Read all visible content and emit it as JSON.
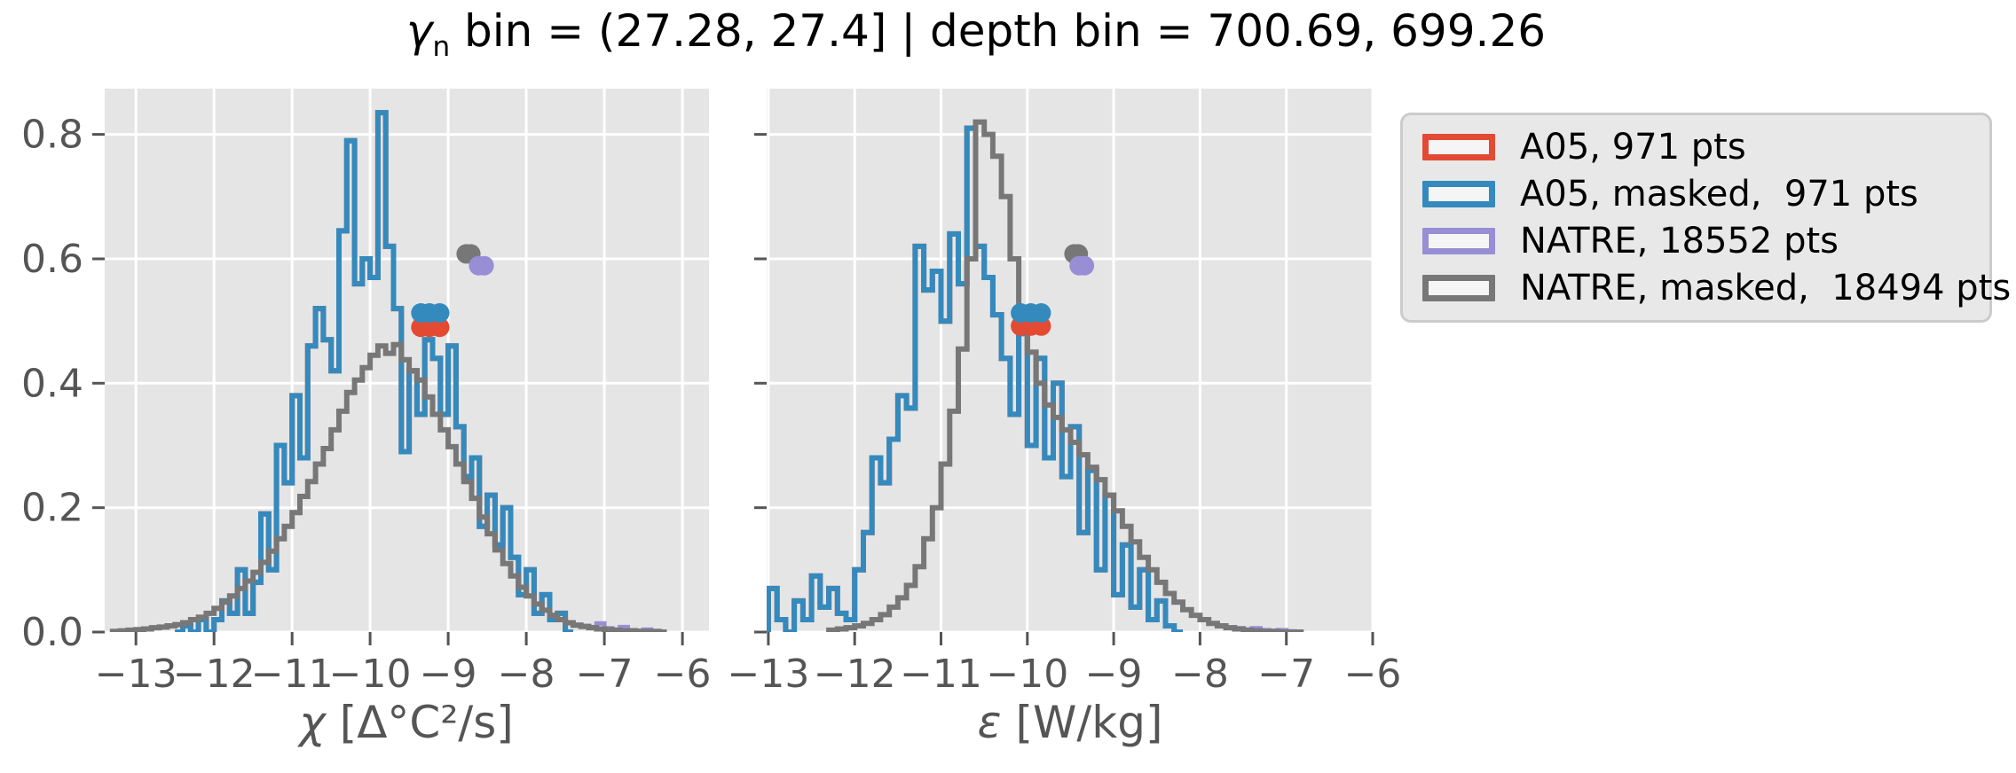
{
  "title": {
    "symbol": "γ",
    "sub": "n",
    "rest": " bin = (27.28, 27.4] | depth bin = 700.69, 699.26"
  },
  "colors": {
    "red": "#E24A33",
    "blue": "#348ABD",
    "purple": "#988ED5",
    "gray": "#777777",
    "plot_bg": "#E5E5E5",
    "grid": "#FFFFFF",
    "tick_text": "#555555",
    "title_text": "#000000",
    "legend_bg": "#E8E8E8",
    "legend_border": "#CBCBCB",
    "swatch_fill": "#F5F5F5"
  },
  "legend": {
    "items": [
      {
        "label": "A05, 971 pts",
        "color": "#E24A33"
      },
      {
        "label": "A05, masked,  971 pts",
        "color": "#348ABD"
      },
      {
        "label": "NATRE, 18552 pts",
        "color": "#988ED5"
      },
      {
        "label": "NATRE, masked,  18494 pts",
        "color": "#777777"
      }
    ]
  },
  "chart_data": [
    {
      "id": "chi",
      "type": "step-histogram",
      "xlabel_symbol": "χ",
      "xlabel_units": " [Δ°C²/s]",
      "xlim": [
        -13.4,
        -5.66
      ],
      "ylim": [
        0,
        0.8736
      ],
      "x_ticks": [
        -13,
        -12,
        -11,
        -10,
        -9,
        -8,
        -7,
        -6
      ],
      "y_ticks": [
        0.0,
        0.2,
        0.4,
        0.6,
        0.8
      ],
      "y_tick_labels_visible": true,
      "grid": true,
      "series": [
        {
          "name": "A05",
          "color": "#E24A33",
          "line_width": 6,
          "bin_start": -12.5,
          "bin_width": 0.1,
          "values": [
            0,
            0.01,
            0,
            0.02,
            0,
            0.02,
            0.05,
            0.03,
            0.1,
            0.03,
            0.08,
            0.19,
            0.1,
            0.3,
            0.24,
            0.38,
            0.28,
            0.46,
            0.52,
            0.47,
            0.42,
            0.645,
            0.79,
            0.56,
            0.6,
            0.57,
            0.835,
            0.62,
            0.52,
            0.29,
            0.42,
            0.35,
            0.47,
            0.44,
            0.35,
            0.46,
            0.33,
            0.25,
            0.28,
            0.17,
            0.22,
            0.14,
            0.2,
            0.12,
            0.06,
            0.1,
            0.03,
            0.06,
            0.02,
            0.03,
            0
          ]
        },
        {
          "name": "A05, masked",
          "color": "#348ABD",
          "line_width": 6,
          "bin_start": -12.5,
          "bin_width": 0.1,
          "values": [
            0,
            0.01,
            0,
            0.02,
            0,
            0.02,
            0.05,
            0.03,
            0.1,
            0.03,
            0.08,
            0.19,
            0.1,
            0.3,
            0.24,
            0.38,
            0.28,
            0.46,
            0.52,
            0.47,
            0.42,
            0.645,
            0.79,
            0.56,
            0.6,
            0.57,
            0.835,
            0.62,
            0.52,
            0.29,
            0.42,
            0.35,
            0.47,
            0.44,
            0.35,
            0.46,
            0.33,
            0.25,
            0.28,
            0.17,
            0.22,
            0.14,
            0.2,
            0.12,
            0.06,
            0.1,
            0.03,
            0.06,
            0.02,
            0.03,
            0
          ]
        },
        {
          "name": "NATRE",
          "color": "#988ED5",
          "line_width": 5,
          "bin_start": -13.3,
          "bin_width": 0.1,
          "values": [
            0.001,
            0.002,
            0.003,
            0.004,
            0.005,
            0.007,
            0.008,
            0.01,
            0.012,
            0.015,
            0.02,
            0.024,
            0.03,
            0.038,
            0.048,
            0.058,
            0.07,
            0.082,
            0.096,
            0.112,
            0.13,
            0.15,
            0.17,
            0.192,
            0.218,
            0.242,
            0.27,
            0.295,
            0.325,
            0.355,
            0.385,
            0.405,
            0.425,
            0.445,
            0.46,
            0.448,
            0.462,
            0.438,
            0.42,
            0.405,
            0.378,
            0.35,
            0.325,
            0.298,
            0.27,
            0.242,
            0.215,
            0.185,
            0.158,
            0.132,
            0.11,
            0.09,
            0.072,
            0.058,
            0.045,
            0.035,
            0.027,
            0.02,
            0.015,
            0.012,
            0.01,
            0.008,
            0.014,
            0.006,
            0.004,
            0.008,
            0.003,
            0.002,
            0.004,
            0.001,
            0
          ]
        },
        {
          "name": "NATRE, masked",
          "color": "#777777",
          "line_width": 6,
          "bin_start": -13.3,
          "bin_width": 0.1,
          "values": [
            0.001,
            0.002,
            0.003,
            0.004,
            0.005,
            0.007,
            0.008,
            0.01,
            0.012,
            0.015,
            0.02,
            0.024,
            0.03,
            0.038,
            0.048,
            0.058,
            0.07,
            0.082,
            0.096,
            0.112,
            0.13,
            0.15,
            0.17,
            0.192,
            0.218,
            0.242,
            0.27,
            0.295,
            0.325,
            0.355,
            0.385,
            0.405,
            0.425,
            0.445,
            0.46,
            0.448,
            0.462,
            0.438,
            0.42,
            0.405,
            0.378,
            0.35,
            0.325,
            0.298,
            0.27,
            0.242,
            0.215,
            0.185,
            0.158,
            0.132,
            0.11,
            0.09,
            0.072,
            0.058,
            0.045,
            0.035,
            0.027,
            0.02,
            0.015,
            0.011,
            0.009,
            0.007,
            0.005,
            0.004,
            0.003,
            0.002,
            0.002,
            0.001,
            0.001,
            0.001,
            0
          ]
        }
      ],
      "markers": [
        {
          "name": "A05 mean",
          "color": "#E24A33",
          "radius": 11,
          "points": [
            [
              -9.35,
              0.49
            ],
            [
              -9.24,
              0.49
            ],
            [
              -9.11,
              0.49
            ]
          ]
        },
        {
          "name": "A05 masked mean",
          "color": "#348ABD",
          "radius": 11,
          "points": [
            [
              -9.35,
              0.513
            ],
            [
              -9.24,
              0.513
            ],
            [
              -9.11,
              0.513
            ]
          ]
        },
        {
          "name": "NATRE masked mean",
          "color": "#777777",
          "radius": 11,
          "points": [
            [
              -8.77,
              0.608
            ],
            [
              -8.71,
              0.608
            ]
          ]
        },
        {
          "name": "NATRE mean",
          "color": "#988ED5",
          "radius": 11,
          "points": [
            [
              -8.61,
              0.589
            ],
            [
              -8.54,
              0.589
            ]
          ]
        }
      ]
    },
    {
      "id": "epsilon",
      "type": "step-histogram",
      "xlabel_symbol": "ε",
      "xlabel_units": " [W/kg]",
      "xlim": [
        -13.02,
        -5.99
      ],
      "ylim": [
        0,
        0.8736
      ],
      "x_ticks": [
        -13,
        -12,
        -11,
        -10,
        -9,
        -8,
        -7,
        -6
      ],
      "y_ticks": [
        0.0,
        0.2,
        0.4,
        0.6,
        0.8
      ],
      "y_tick_labels_visible": false,
      "grid": true,
      "series": [
        {
          "name": "A05",
          "color": "#E24A33",
          "line_width": 6,
          "bin_start": -13.0,
          "bin_width": 0.1,
          "values": [
            0.07,
            0.02,
            0,
            0.05,
            0.02,
            0.09,
            0.04,
            0.07,
            0.03,
            0.02,
            0.1,
            0.16,
            0.28,
            0.24,
            0.31,
            0.38,
            0.36,
            0.62,
            0.55,
            0.58,
            0.5,
            0.64,
            0.56,
            0.81,
            0.62,
            0.57,
            0.51,
            0.44,
            0.35,
            0.48,
            0.3,
            0.44,
            0.28,
            0.4,
            0.25,
            0.33,
            0.16,
            0.26,
            0.1,
            0.22,
            0.06,
            0.14,
            0.04,
            0.1,
            0.02,
            0.05,
            0.01,
            0
          ]
        },
        {
          "name": "A05, masked",
          "color": "#348ABD",
          "line_width": 6,
          "bin_start": -13.0,
          "bin_width": 0.1,
          "values": [
            0.07,
            0.02,
            0,
            0.05,
            0.02,
            0.09,
            0.04,
            0.07,
            0.03,
            0.02,
            0.1,
            0.16,
            0.28,
            0.24,
            0.31,
            0.38,
            0.36,
            0.62,
            0.55,
            0.58,
            0.5,
            0.64,
            0.56,
            0.81,
            0.62,
            0.57,
            0.51,
            0.44,
            0.35,
            0.48,
            0.3,
            0.44,
            0.28,
            0.4,
            0.25,
            0.33,
            0.16,
            0.26,
            0.1,
            0.22,
            0.06,
            0.14,
            0.04,
            0.1,
            0.02,
            0.05,
            0.01,
            0
          ]
        },
        {
          "name": "NATRE",
          "color": "#988ED5",
          "line_width": 5,
          "bin_start": -12.3,
          "bin_width": 0.1,
          "values": [
            0.003,
            0.005,
            0.007,
            0.01,
            0.014,
            0.02,
            0.028,
            0.04,
            0.055,
            0.075,
            0.105,
            0.15,
            0.2,
            0.27,
            0.355,
            0.455,
            0.6,
            0.82,
            0.8,
            0.765,
            0.7,
            0.6,
            0.5,
            0.45,
            0.4,
            0.365,
            0.345,
            0.325,
            0.305,
            0.285,
            0.265,
            0.245,
            0.22,
            0.195,
            0.17,
            0.145,
            0.12,
            0.1,
            0.08,
            0.062,
            0.048,
            0.036,
            0.027,
            0.02,
            0.014,
            0.01,
            0.007,
            0.006,
            0.004,
            0.006,
            0.003,
            0.002,
            0.003,
            0.001,
            0
          ]
        },
        {
          "name": "NATRE, masked",
          "color": "#777777",
          "line_width": 6,
          "bin_start": -12.3,
          "bin_width": 0.1,
          "values": [
            0.003,
            0.005,
            0.007,
            0.01,
            0.014,
            0.02,
            0.028,
            0.04,
            0.055,
            0.075,
            0.105,
            0.15,
            0.2,
            0.27,
            0.355,
            0.455,
            0.6,
            0.82,
            0.8,
            0.765,
            0.7,
            0.6,
            0.5,
            0.45,
            0.4,
            0.365,
            0.345,
            0.325,
            0.305,
            0.285,
            0.265,
            0.245,
            0.22,
            0.195,
            0.17,
            0.145,
            0.12,
            0.1,
            0.08,
            0.062,
            0.048,
            0.036,
            0.027,
            0.02,
            0.014,
            0.01,
            0.007,
            0.005,
            0.003,
            0.002,
            0.001,
            0.001,
            0,
            0,
            0
          ]
        }
      ],
      "markers": [
        {
          "name": "A05 mean",
          "color": "#E24A33",
          "radius": 11,
          "points": [
            [
              -10.08,
              0.492
            ],
            [
              -9.96,
              0.492
            ],
            [
              -9.84,
              0.492
            ]
          ]
        },
        {
          "name": "A05 masked mean",
          "color": "#348ABD",
          "radius": 11,
          "points": [
            [
              -10.08,
              0.513
            ],
            [
              -9.96,
              0.513
            ],
            [
              -9.84,
              0.513
            ]
          ]
        },
        {
          "name": "NATRE masked mean",
          "color": "#777777",
          "radius": 11,
          "points": [
            [
              -9.46,
              0.608
            ],
            [
              -9.41,
              0.608
            ]
          ]
        },
        {
          "name": "NATRE mean",
          "color": "#988ED5",
          "radius": 11,
          "points": [
            [
              -9.4,
              0.589
            ],
            [
              -9.34,
              0.589
            ]
          ]
        }
      ]
    }
  ]
}
